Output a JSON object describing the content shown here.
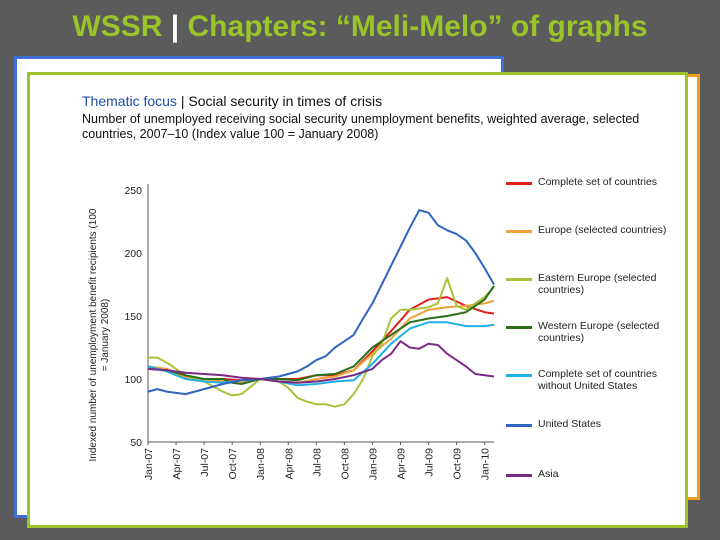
{
  "slide": {
    "title_main": "WSSR",
    "title_sep": "|",
    "title_rest": "Chapters: “Meli-Melo” of graphs"
  },
  "card": {
    "focus": "Thematic focus",
    "sep": "|",
    "heading": "Social security in times of crisis",
    "subtitle_lead": "Number of",
    "subtitle_rest": "unemployed receiving social security unemployment  benefits, weighted average, selected countries, 2007–10 (Index  value 100 = January 2008)"
  },
  "chart_data": {
    "type": "line",
    "title": "",
    "xlabel": "",
    "ylabel": "Indexed number of unemployment benefit recipients (100 = January 2008)",
    "ylim": [
      50,
      250
    ],
    "yticks": [
      50,
      100,
      150,
      200,
      250
    ],
    "x_tick_labels": [
      "Jan-07",
      "Apr-07",
      "Jul-07",
      "Oct-07",
      "Jan-08",
      "Apr-08",
      "Jul-08",
      "Oct-08",
      "Jan-09",
      "Apr-09",
      "Jul-09",
      "Oct-09",
      "Jan-10"
    ],
    "x_range_months": [
      0,
      37
    ],
    "grid": false,
    "legend_position": "right",
    "series": [
      {
        "name": "Complete set of countries",
        "color": "#e0201c",
        "points": [
          [
            0,
            108
          ],
          [
            2,
            108
          ],
          [
            4,
            102
          ],
          [
            6,
            100
          ],
          [
            8,
            100
          ],
          [
            10,
            99
          ],
          [
            12,
            100
          ],
          [
            14,
            100
          ],
          [
            16,
            100
          ],
          [
            18,
            103
          ],
          [
            20,
            103
          ],
          [
            22,
            107
          ],
          [
            24,
            122
          ],
          [
            26,
            138
          ],
          [
            28,
            155
          ],
          [
            30,
            163
          ],
          [
            32,
            165
          ],
          [
            34,
            158
          ],
          [
            36,
            153
          ],
          [
            37,
            152
          ]
        ]
      },
      {
        "name": "Europe (selected countries)",
        "color": "#f2a23a",
        "points": [
          [
            0,
            110
          ],
          [
            2,
            108
          ],
          [
            4,
            101
          ],
          [
            6,
            100
          ],
          [
            8,
            98
          ],
          [
            10,
            97
          ],
          [
            12,
            100
          ],
          [
            14,
            98
          ],
          [
            16,
            97
          ],
          [
            18,
            100
          ],
          [
            20,
            102
          ],
          [
            22,
            107
          ],
          [
            24,
            120
          ],
          [
            26,
            132
          ],
          [
            28,
            148
          ],
          [
            30,
            155
          ],
          [
            32,
            157
          ],
          [
            34,
            158
          ],
          [
            36,
            160
          ],
          [
            37,
            162
          ]
        ]
      },
      {
        "name": "Eastern Europe (selected countries)",
        "color": "#a9c23b",
        "points": [
          [
            0,
            117
          ],
          [
            1,
            117
          ],
          [
            2,
            113
          ],
          [
            4,
            103
          ],
          [
            6,
            98
          ],
          [
            8,
            90
          ],
          [
            9,
            87
          ],
          [
            10,
            88
          ],
          [
            12,
            100
          ],
          [
            14,
            98
          ],
          [
            15,
            93
          ],
          [
            16,
            85
          ],
          [
            17,
            82
          ],
          [
            18,
            80
          ],
          [
            19,
            80
          ],
          [
            20,
            78
          ],
          [
            21,
            80
          ],
          [
            22,
            88
          ],
          [
            23,
            100
          ],
          [
            24,
            118
          ],
          [
            25,
            128
          ],
          [
            26,
            148
          ],
          [
            27,
            155
          ],
          [
            28,
            155
          ],
          [
            30,
            157
          ],
          [
            31,
            160
          ],
          [
            32,
            180
          ],
          [
            33,
            158
          ],
          [
            34,
            155
          ],
          [
            36,
            165
          ],
          [
            37,
            173
          ]
        ]
      },
      {
        "name": "Western Europe (selected countries)",
        "color": "#2a6e1a",
        "points": [
          [
            0,
            108
          ],
          [
            2,
            107
          ],
          [
            4,
            103
          ],
          [
            6,
            100
          ],
          [
            8,
            100
          ],
          [
            9,
            97
          ],
          [
            10,
            96
          ],
          [
            12,
            100
          ],
          [
            14,
            100
          ],
          [
            16,
            99
          ],
          [
            18,
            103
          ],
          [
            20,
            104
          ],
          [
            22,
            110
          ],
          [
            24,
            125
          ],
          [
            26,
            135
          ],
          [
            28,
            145
          ],
          [
            30,
            148
          ],
          [
            32,
            150
          ],
          [
            34,
            153
          ],
          [
            36,
            163
          ],
          [
            37,
            174
          ]
        ]
      },
      {
        "name": "Complete set of countries without United States",
        "color": "#1fb0e4",
        "points": [
          [
            0,
            110
          ],
          [
            2,
            106
          ],
          [
            4,
            100
          ],
          [
            6,
            98
          ],
          [
            8,
            97
          ],
          [
            10,
            99
          ],
          [
            12,
            100
          ],
          [
            14,
            98
          ],
          [
            16,
            95
          ],
          [
            18,
            96
          ],
          [
            20,
            98
          ],
          [
            22,
            99
          ],
          [
            24,
            112
          ],
          [
            26,
            128
          ],
          [
            28,
            140
          ],
          [
            30,
            145
          ],
          [
            32,
            145
          ],
          [
            34,
            142
          ],
          [
            36,
            142
          ],
          [
            37,
            143
          ]
        ]
      },
      {
        "name": "United States",
        "color": "#2e64c2",
        "points": [
          [
            0,
            90
          ],
          [
            1,
            92
          ],
          [
            2,
            90
          ],
          [
            4,
            88
          ],
          [
            6,
            92
          ],
          [
            8,
            96
          ],
          [
            10,
            99
          ],
          [
            12,
            100
          ],
          [
            14,
            102
          ],
          [
            16,
            106
          ],
          [
            17,
            110
          ],
          [
            18,
            115
          ],
          [
            19,
            118
          ],
          [
            20,
            125
          ],
          [
            21,
            130
          ],
          [
            22,
            135
          ],
          [
            23,
            148
          ],
          [
            24,
            160
          ],
          [
            25,
            175
          ],
          [
            26,
            190
          ],
          [
            27,
            205
          ],
          [
            28,
            220
          ],
          [
            29,
            234
          ],
          [
            30,
            232
          ],
          [
            31,
            222
          ],
          [
            32,
            218
          ],
          [
            33,
            215
          ],
          [
            34,
            210
          ],
          [
            35,
            200
          ],
          [
            36,
            188
          ],
          [
            37,
            175
          ]
        ]
      },
      {
        "name": "Asia",
        "color": "#7a2a84",
        "points": [
          [
            0,
            108
          ],
          [
            2,
            107
          ],
          [
            4,
            105
          ],
          [
            6,
            104
          ],
          [
            8,
            103
          ],
          [
            10,
            101
          ],
          [
            12,
            100
          ],
          [
            14,
            98
          ],
          [
            16,
            97
          ],
          [
            18,
            98
          ],
          [
            20,
            100
          ],
          [
            22,
            103
          ],
          [
            24,
            108
          ],
          [
            25,
            115
          ],
          [
            26,
            120
          ],
          [
            27,
            130
          ],
          [
            28,
            125
          ],
          [
            29,
            124
          ],
          [
            30,
            128
          ],
          [
            31,
            127
          ],
          [
            32,
            120
          ],
          [
            33,
            115
          ],
          [
            34,
            110
          ],
          [
            35,
            104
          ],
          [
            36,
            103
          ],
          [
            37,
            102
          ]
        ]
      }
    ]
  }
}
